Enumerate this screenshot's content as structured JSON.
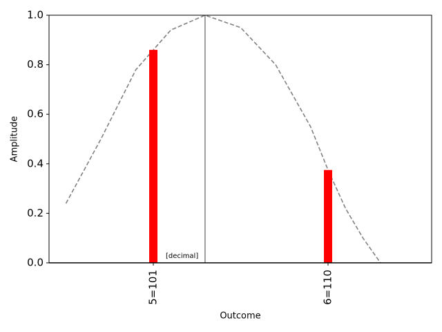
{
  "chart_data": {
    "type": "bar",
    "xlabel": "Outcome",
    "ylabel": "Amplitude",
    "xlim": [
      4.403,
      6.593
    ],
    "ylim": [
      0,
      1
    ],
    "xticks": [
      {
        "value": 5,
        "label": "5=101"
      },
      {
        "value": 6,
        "label": "6=110"
      }
    ],
    "yticks": [
      {
        "value": 0,
        "label": "0.0"
      },
      {
        "value": 0.2,
        "label": "0.2"
      },
      {
        "value": 0.4,
        "label": "0.4"
      },
      {
        "value": 0.6,
        "label": "0.6"
      },
      {
        "value": 0.8,
        "label": "0.8"
      },
      {
        "value": 1,
        "label": "1.0"
      }
    ],
    "bars": {
      "x": [
        5,
        6
      ],
      "values": [
        0.86,
        0.375
      ],
      "color": "#ff0000"
    },
    "curve": {
      "x": [
        4.5,
        4.7,
        4.9,
        5.0,
        5.1,
        5.296,
        5.5,
        5.7,
        5.9,
        6.0,
        6.1,
        6.2,
        6.3
      ],
      "values": [
        0.24,
        0.5,
        0.78,
        0.86,
        0.94,
        1.0,
        0.95,
        0.8,
        0.55,
        0.375,
        0.22,
        0.1,
        0.0
      ],
      "color": "#808080",
      "dashed": true
    },
    "vline": {
      "x": 5.296,
      "color": "#808080"
    },
    "annotation": "[decimal]"
  }
}
